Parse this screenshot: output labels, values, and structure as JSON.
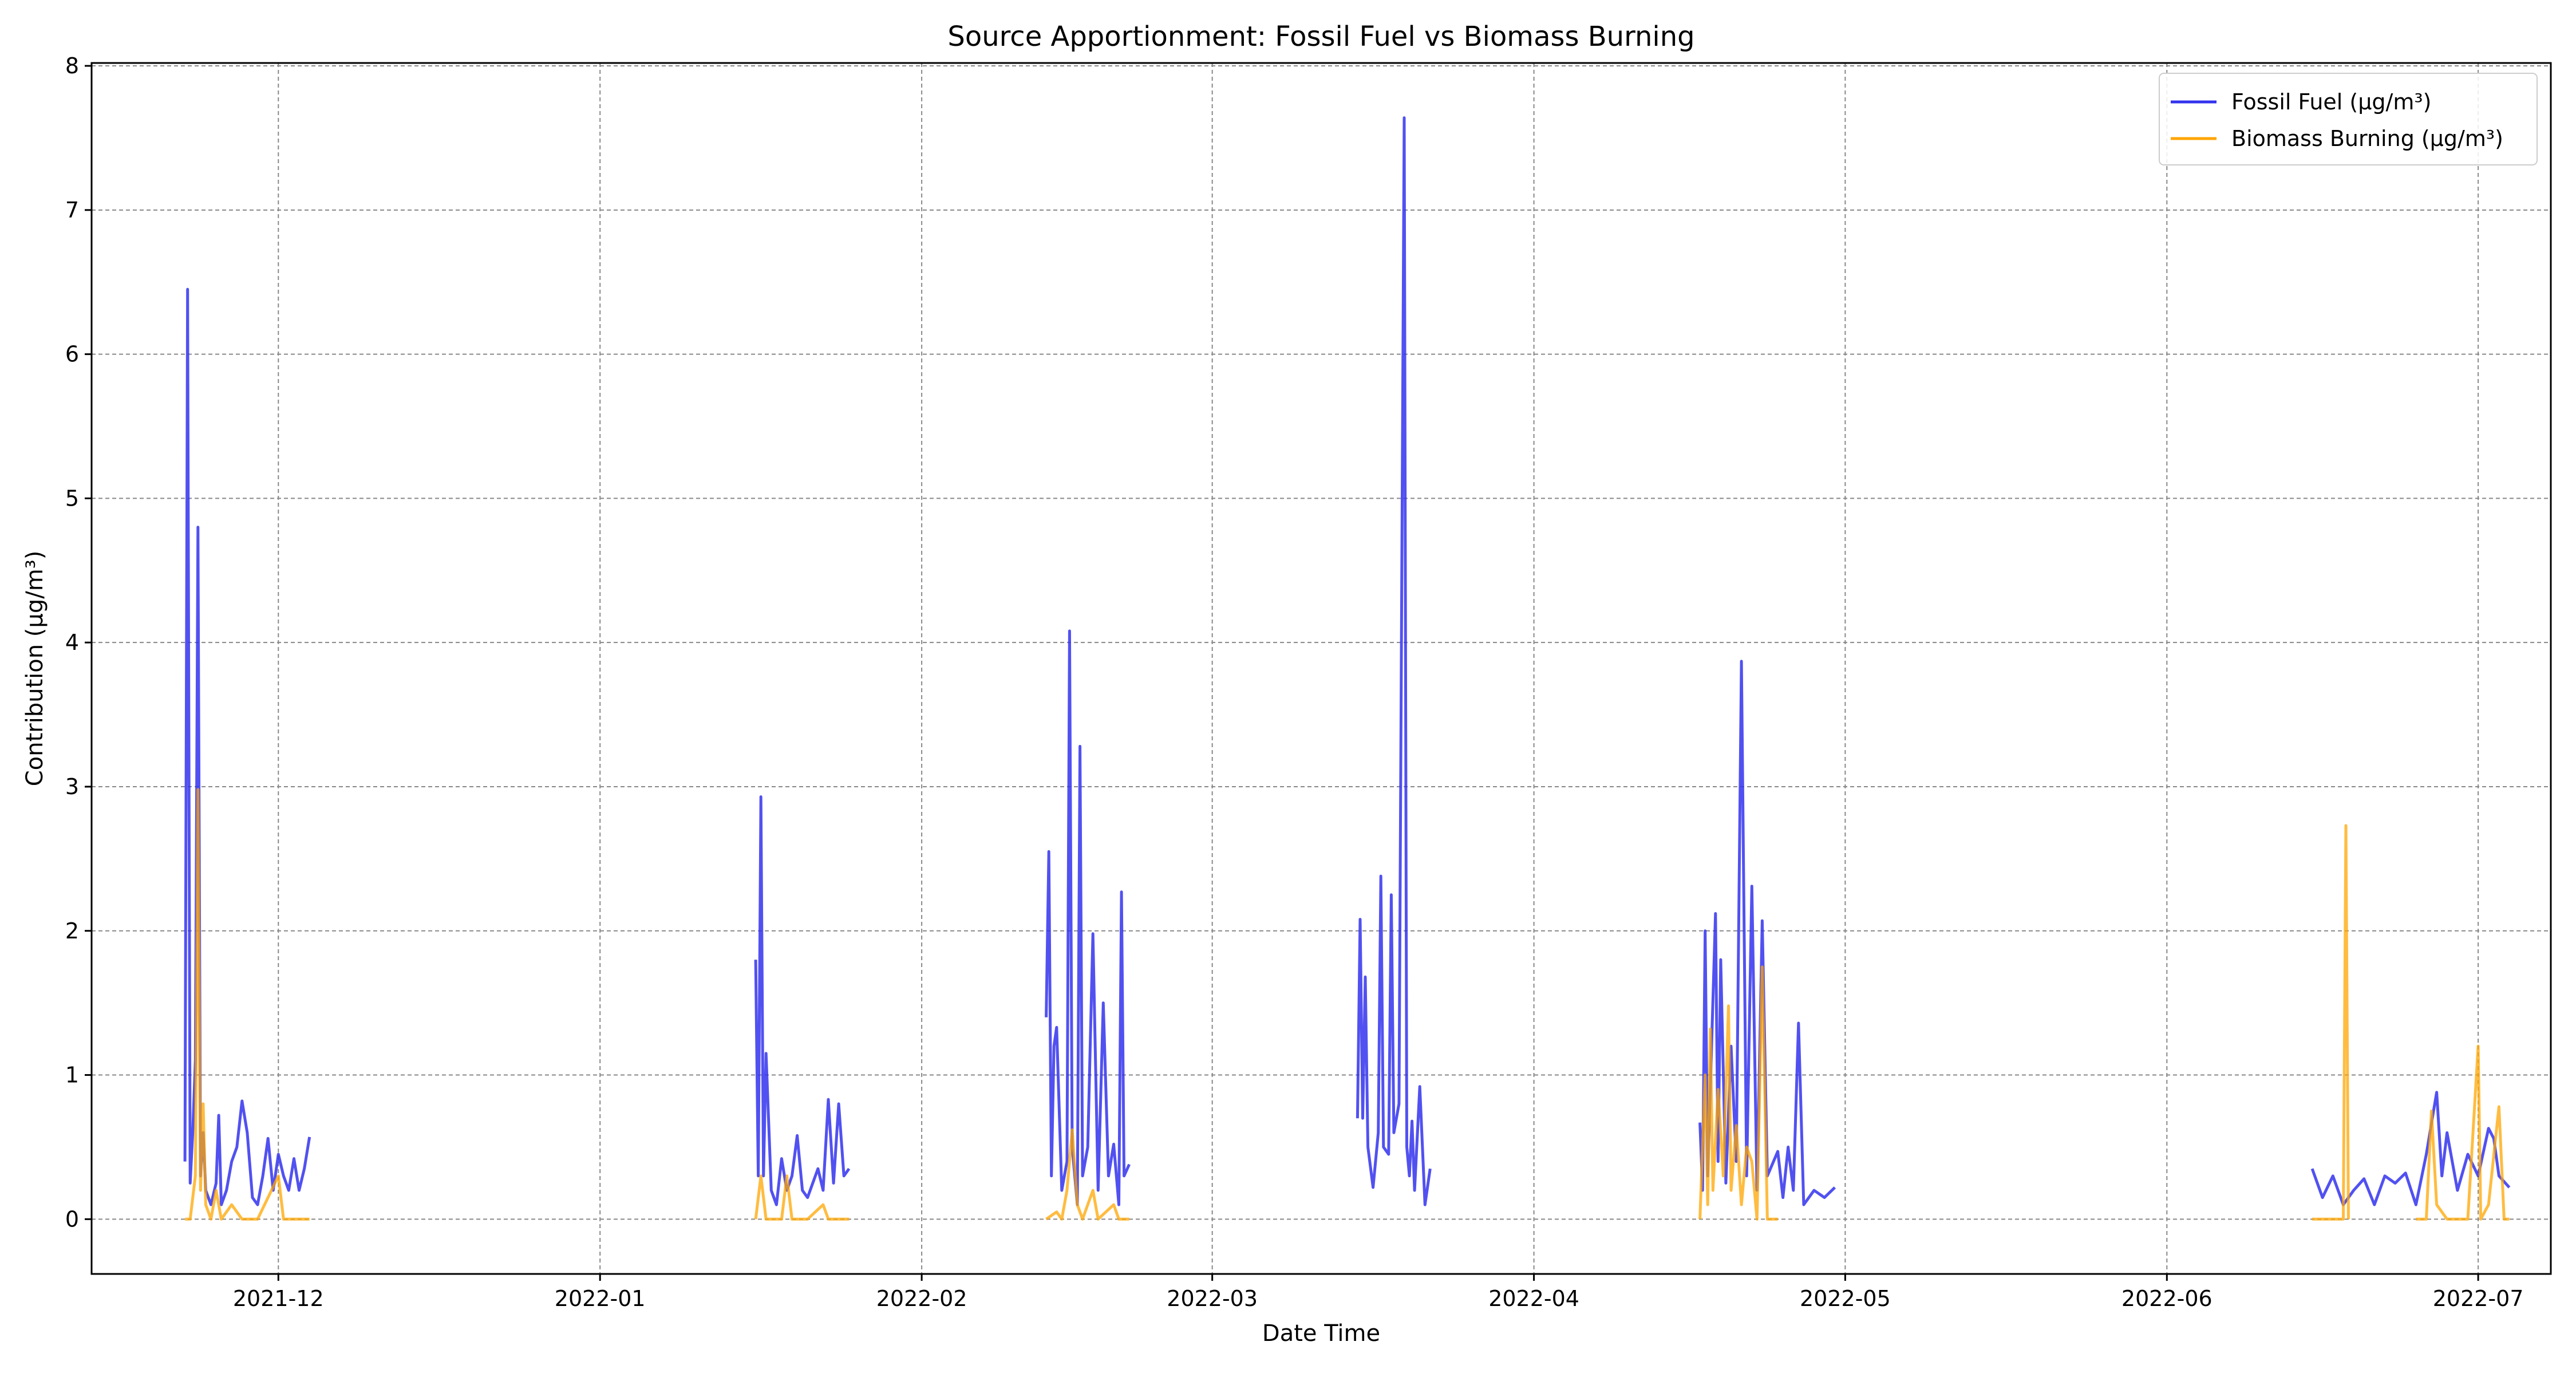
{
  "chart_data": {
    "type": "line",
    "title": "Source Apportionment: Fossil Fuel vs Biomass Burning",
    "xlabel": "Date Time",
    "ylabel": "Contribution (µg/m³)",
    "x_ticks": [
      "2021-12",
      "2022-01",
      "2022-02",
      "2022-03",
      "2022-04",
      "2022-05",
      "2022-06",
      "2022-07"
    ],
    "y_ticks": [
      "0",
      "1",
      "2",
      "3",
      "4",
      "5",
      "6",
      "7",
      "8"
    ],
    "xlim": [
      "2021-11-13",
      "2022-07-08"
    ],
    "ylim": [
      -0.38,
      8.02
    ],
    "grid": true,
    "grid_style": "dashed",
    "legend_position": "top-right",
    "series": [
      {
        "name": "Fossil Fuel (µg/m³)",
        "color": "#3333ee",
        "values": [
          [
            "2021-11-22T00:00",
            0.4
          ],
          [
            "2021-11-22T06:00",
            6.45
          ],
          [
            "2021-11-22T12:00",
            0.25
          ],
          [
            "2021-11-22T18:00",
            0.6
          ],
          [
            "2021-11-23T00:00",
            1.1
          ],
          [
            "2021-11-23T06:00",
            4.8
          ],
          [
            "2021-11-23T12:00",
            0.3
          ],
          [
            "2021-11-23T18:00",
            0.6
          ],
          [
            "2021-11-24T00:00",
            0.2
          ],
          [
            "2021-11-24T12:00",
            0.1
          ],
          [
            "2021-11-25T00:00",
            0.25
          ],
          [
            "2021-11-25T06:00",
            0.72
          ],
          [
            "2021-11-25T12:00",
            0.1
          ],
          [
            "2021-11-26T00:00",
            0.2
          ],
          [
            "2021-11-26T12:00",
            0.4
          ],
          [
            "2021-11-27T00:00",
            0.5
          ],
          [
            "2021-11-27T12:00",
            0.82
          ],
          [
            "2021-11-28T00:00",
            0.6
          ],
          [
            "2021-11-28T12:00",
            0.15
          ],
          [
            "2021-11-29T00:00",
            0.1
          ],
          [
            "2021-11-29T12:00",
            0.3
          ],
          [
            "2021-11-30T00:00",
            0.56
          ],
          [
            "2021-11-30T12:00",
            0.2
          ],
          [
            "2021-12-01T00:00",
            0.45
          ],
          [
            "2021-12-01T12:00",
            0.3
          ],
          [
            "2021-12-02T00:00",
            0.2
          ],
          [
            "2021-12-02T12:00",
            0.42
          ],
          [
            "2021-12-03T00:00",
            0.2
          ],
          [
            "2021-12-03T12:00",
            0.35
          ],
          [
            "2021-12-04T00:00",
            0.57
          ],
          [
            "2022-01-16T00:00",
            1.8
          ],
          [
            "2022-01-16T06:00",
            0.3
          ],
          [
            "2022-01-16T12:00",
            2.93
          ],
          [
            "2022-01-16T18:00",
            0.3
          ],
          [
            "2022-01-17T00:00",
            1.15
          ],
          [
            "2022-01-17T12:00",
            0.2
          ],
          [
            "2022-01-18T00:00",
            0.1
          ],
          [
            "2022-01-18T12:00",
            0.42
          ],
          [
            "2022-01-19T00:00",
            0.2
          ],
          [
            "2022-01-19T12:00",
            0.3
          ],
          [
            "2022-01-20T00:00",
            0.58
          ],
          [
            "2022-01-20T12:00",
            0.2
          ],
          [
            "2022-01-21T00:00",
            0.15
          ],
          [
            "2022-01-21T12:00",
            0.25
          ],
          [
            "2022-01-22T00:00",
            0.35
          ],
          [
            "2022-01-22T12:00",
            0.2
          ],
          [
            "2022-01-23T00:00",
            0.83
          ],
          [
            "2022-01-23T12:00",
            0.25
          ],
          [
            "2022-01-24T00:00",
            0.8
          ],
          [
            "2022-01-24T12:00",
            0.3
          ],
          [
            "2022-01-25T00:00",
            0.35
          ],
          [
            "2022-02-13T00:00",
            1.4
          ],
          [
            "2022-02-13T06:00",
            2.55
          ],
          [
            "2022-02-13T12:00",
            0.3
          ],
          [
            "2022-02-13T18:00",
            1.2
          ],
          [
            "2022-02-14T00:00",
            1.33
          ],
          [
            "2022-02-14T12:00",
            0.2
          ],
          [
            "2022-02-15T00:00",
            0.4
          ],
          [
            "2022-02-15T06:00",
            4.08
          ],
          [
            "2022-02-15T12:00",
            0.5
          ],
          [
            "2022-02-16T00:00",
            0.1
          ],
          [
            "2022-02-16T06:00",
            3.28
          ],
          [
            "2022-02-16T12:00",
            0.3
          ],
          [
            "2022-02-17T00:00",
            0.5
          ],
          [
            "2022-02-17T12:00",
            1.98
          ],
          [
            "2022-02-18T00:00",
            0.2
          ],
          [
            "2022-02-18T12:00",
            1.5
          ],
          [
            "2022-02-19T00:00",
            0.3
          ],
          [
            "2022-02-19T12:00",
            0.52
          ],
          [
            "2022-02-20T00:00",
            0.1
          ],
          [
            "2022-02-20T06:00",
            2.27
          ],
          [
            "2022-02-20T12:00",
            0.3
          ],
          [
            "2022-02-21T00:00",
            0.38
          ],
          [
            "2022-03-15T00:00",
            0.7
          ],
          [
            "2022-03-15T06:00",
            2.08
          ],
          [
            "2022-03-15T12:00",
            0.7
          ],
          [
            "2022-03-15T18:00",
            1.68
          ],
          [
            "2022-03-16T00:00",
            0.5
          ],
          [
            "2022-03-16T12:00",
            0.22
          ],
          [
            "2022-03-17T00:00",
            0.6
          ],
          [
            "2022-03-17T06:00",
            2.38
          ],
          [
            "2022-03-17T12:00",
            0.5
          ],
          [
            "2022-03-18T00:00",
            0.45
          ],
          [
            "2022-03-18T06:00",
            2.25
          ],
          [
            "2022-03-18T12:00",
            0.6
          ],
          [
            "2022-03-19T00:00",
            0.8
          ],
          [
            "2022-03-19T12:00",
            7.64
          ],
          [
            "2022-03-19T18:00",
            0.5
          ],
          [
            "2022-03-20T00:00",
            0.3
          ],
          [
            "2022-03-20T06:00",
            0.68
          ],
          [
            "2022-03-20T12:00",
            0.2
          ],
          [
            "2022-03-21T00:00",
            0.92
          ],
          [
            "2022-03-21T12:00",
            0.1
          ],
          [
            "2022-03-22T00:00",
            0.35
          ],
          [
            "2022-04-17T00:00",
            0.67
          ],
          [
            "2022-04-17T06:00",
            0.2
          ],
          [
            "2022-04-17T12:00",
            2.0
          ],
          [
            "2022-04-17T18:00",
            0.3
          ],
          [
            "2022-04-18T00:00",
            0.9
          ],
          [
            "2022-04-18T12:00",
            2.12
          ],
          [
            "2022-04-18T18:00",
            0.4
          ],
          [
            "2022-04-19T00:00",
            1.8
          ],
          [
            "2022-04-19T12:00",
            0.25
          ],
          [
            "2022-04-20T00:00",
            1.2
          ],
          [
            "2022-04-20T12:00",
            0.4
          ],
          [
            "2022-04-21T00:00",
            3.87
          ],
          [
            "2022-04-21T12:00",
            0.3
          ],
          [
            "2022-04-22T00:00",
            2.31
          ],
          [
            "2022-04-22T12:00",
            0.2
          ],
          [
            "2022-04-23T00:00",
            2.07
          ],
          [
            "2022-04-23T12:00",
            0.3
          ],
          [
            "2022-04-24T12:00",
            0.47
          ],
          [
            "2022-04-25T00:00",
            0.15
          ],
          [
            "2022-04-25T12:00",
            0.5
          ],
          [
            "2022-04-26T00:00",
            0.2
          ],
          [
            "2022-04-26T12:00",
            1.36
          ],
          [
            "2022-04-27T00:00",
            0.1
          ],
          [
            "2022-04-28T00:00",
            0.2
          ],
          [
            "2022-04-29T00:00",
            0.15
          ],
          [
            "2022-04-30T00:00",
            0.22
          ],
          [
            "2022-06-15T00:00",
            0.35
          ],
          [
            "2022-06-16T00:00",
            0.15
          ],
          [
            "2022-06-17T00:00",
            0.3
          ],
          [
            "2022-06-18T00:00",
            0.1
          ],
          [
            "2022-06-19T00:00",
            0.2
          ],
          [
            "2022-06-20T00:00",
            0.28
          ],
          [
            "2022-06-21T00:00",
            0.1
          ],
          [
            "2022-06-22T00:00",
            0.3
          ],
          [
            "2022-06-23T00:00",
            0.25
          ],
          [
            "2022-06-24T00:00",
            0.32
          ],
          [
            "2022-06-25T00:00",
            0.1
          ],
          [
            "2022-06-26T00:00",
            0.45
          ],
          [
            "2022-06-27T00:00",
            0.88
          ],
          [
            "2022-06-27T12:00",
            0.3
          ],
          [
            "2022-06-28T00:00",
            0.6
          ],
          [
            "2022-06-29T00:00",
            0.2
          ],
          [
            "2022-06-30T00:00",
            0.45
          ],
          [
            "2022-07-01T00:00",
            0.3
          ],
          [
            "2022-07-02T00:00",
            0.63
          ],
          [
            "2022-07-02T12:00",
            0.56
          ],
          [
            "2022-07-03T00:00",
            0.3
          ],
          [
            "2022-07-04T00:00",
            0.22
          ]
        ]
      },
      {
        "name": "Biomass Burning (µg/m³)",
        "color": "#ffa500",
        "values": [
          [
            "2021-11-22T00:00",
            0.0
          ],
          [
            "2021-11-22T12:00",
            0.0
          ],
          [
            "2021-11-23T00:00",
            0.3
          ],
          [
            "2021-11-23T06:00",
            2.98
          ],
          [
            "2021-11-23T12:00",
            0.2
          ],
          [
            "2021-11-23T18:00",
            0.8
          ],
          [
            "2021-11-24T00:00",
            0.1
          ],
          [
            "2021-11-24T12:00",
            0.0
          ],
          [
            "2021-11-25T00:00",
            0.2
          ],
          [
            "2021-11-25T12:00",
            0.0
          ],
          [
            "2021-11-26T12:00",
            0.1
          ],
          [
            "2021-11-27T12:00",
            0.0
          ],
          [
            "2021-11-29T00:00",
            0.0
          ],
          [
            "2021-11-30T00:00",
            0.15
          ],
          [
            "2021-12-01T00:00",
            0.3
          ],
          [
            "2021-12-01T12:00",
            0.0
          ],
          [
            "2021-12-02T12:00",
            0.0
          ],
          [
            "2021-12-04T00:00",
            0.0
          ],
          [
            "2022-01-16T00:00",
            0.0
          ],
          [
            "2022-01-16T12:00",
            0.3
          ],
          [
            "2022-01-17T00:00",
            0.0
          ],
          [
            "2022-01-18T12:00",
            0.0
          ],
          [
            "2022-01-19T00:00",
            0.3
          ],
          [
            "2022-01-19T12:00",
            0.0
          ],
          [
            "2022-01-21T00:00",
            0.0
          ],
          [
            "2022-01-22T12:00",
            0.1
          ],
          [
            "2022-01-23T00:00",
            0.0
          ],
          [
            "2022-01-25T00:00",
            0.0
          ],
          [
            "2022-02-13T00:00",
            0.0
          ],
          [
            "2022-02-14T00:00",
            0.05
          ],
          [
            "2022-02-14T12:00",
            0.0
          ],
          [
            "2022-02-15T00:00",
            0.2
          ],
          [
            "2022-02-15T12:00",
            0.62
          ],
          [
            "2022-02-16T00:00",
            0.1
          ],
          [
            "2022-02-16T12:00",
            0.0
          ],
          [
            "2022-02-17T12:00",
            0.2
          ],
          [
            "2022-02-18T00:00",
            0.0
          ],
          [
            "2022-02-19T12:00",
            0.1
          ],
          [
            "2022-02-20T00:00",
            0.0
          ],
          [
            "2022-02-21T00:00",
            0.0
          ],
          [
            "2022-03-15T00:00",
            0.0
          ],
          [
            "2022-03-22T12:00",
            0.0
          ],
          [
            "2022-04-17T00:00",
            0.0
          ],
          [
            "2022-04-17T12:00",
            1.0
          ],
          [
            "2022-04-17T18:00",
            0.1
          ],
          [
            "2022-04-18T00:00",
            1.32
          ],
          [
            "2022-04-18T06:00",
            0.2
          ],
          [
            "2022-04-18T18:00",
            0.9
          ],
          [
            "2022-04-19T06:00",
            0.3
          ],
          [
            "2022-04-19T18:00",
            1.48
          ],
          [
            "2022-04-20T00:00",
            0.2
          ],
          [
            "2022-04-20T12:00",
            0.65
          ],
          [
            "2022-04-21T00:00",
            0.1
          ],
          [
            "2022-04-21T12:00",
            0.5
          ],
          [
            "2022-04-22T00:00",
            0.4
          ],
          [
            "2022-04-22T12:00",
            0.0
          ],
          [
            "2022-04-23T00:00",
            1.75
          ],
          [
            "2022-04-23T12:00",
            0.0
          ],
          [
            "2022-04-24T12:00",
            0.0
          ],
          [
            "2022-04-30T00:00",
            0.0
          ],
          [
            "2022-06-15T00:00",
            0.0
          ],
          [
            "2022-06-17T00:00",
            0.0
          ],
          [
            "2022-06-18T00:00",
            0.0
          ],
          [
            "2022-06-18T06:00",
            2.73
          ],
          [
            "2022-06-18T12:00",
            0.0
          ],
          [
            "2022-06-25T00:00",
            0.0
          ],
          [
            "2022-06-26T00:00",
            0.0
          ],
          [
            "2022-06-26T12:00",
            0.75
          ],
          [
            "2022-06-27T00:00",
            0.1
          ],
          [
            "2022-06-28T00:00",
            0.0
          ],
          [
            "2022-06-30T00:00",
            0.0
          ],
          [
            "2022-07-01T00:00",
            1.2
          ],
          [
            "2022-07-01T06:00",
            0.0
          ],
          [
            "2022-07-02T00:00",
            0.1
          ],
          [
            "2022-07-03T00:00",
            0.78
          ],
          [
            "2022-07-03T12:00",
            0.0
          ],
          [
            "2022-07-04T00:00",
            0.0
          ]
        ]
      }
    ]
  }
}
